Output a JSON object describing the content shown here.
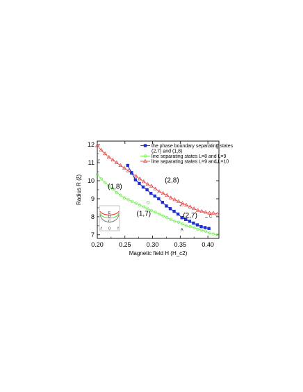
{
  "chart_data": {
    "type": "scatter",
    "xlabel": "Magnetic field H (H_c2)",
    "ylabel": "Radius R (ξ)",
    "xlim": [
      0.2,
      0.42
    ],
    "ylim": [
      6.8,
      12.2
    ],
    "x_ticks": [
      "0.20",
      "0.25",
      "0.30",
      "0.35",
      "0.40"
    ],
    "y_ticks": [
      "7",
      "8",
      "9",
      "10",
      "11",
      "12"
    ],
    "grid": false,
    "legend_position": "top-right",
    "series": [
      {
        "name": "the phase boundary separating states (2,7) and (1,8)",
        "color": "#1f2fd0",
        "marker": "filled-square",
        "x": [
          0.255,
          0.262,
          0.269,
          0.276,
          0.283,
          0.29,
          0.297,
          0.304,
          0.311,
          0.318,
          0.325,
          0.332,
          0.339,
          0.346,
          0.353,
          0.36,
          0.367,
          0.374,
          0.381,
          0.388,
          0.395,
          0.402
        ],
        "y": [
          10.85,
          10.45,
          10.05,
          9.85,
          9.65,
          9.5,
          9.3,
          9.15,
          9.0,
          8.8,
          8.6,
          8.45,
          8.3,
          8.15,
          7.95,
          7.85,
          7.75,
          7.65,
          7.55,
          7.45,
          7.4,
          7.35
        ]
      },
      {
        "name": "line  separating states L=8 and L=9",
        "color": "#66ee44",
        "marker": "open-circle",
        "x": [
          0.2,
          0.207,
          0.214,
          0.221,
          0.228,
          0.235,
          0.242,
          0.249,
          0.256,
          0.263,
          0.27,
          0.277,
          0.284,
          0.291,
          0.298,
          0.305,
          0.312,
          0.319,
          0.326,
          0.333,
          0.34,
          0.347,
          0.354,
          0.361,
          0.368,
          0.375,
          0.382,
          0.389,
          0.396,
          0.403,
          0.41,
          0.417
        ],
        "y": [
          10.35,
          10.1,
          9.9,
          9.7,
          9.55,
          9.35,
          9.2,
          9.05,
          8.95,
          8.85,
          8.75,
          8.65,
          8.55,
          8.45,
          8.35,
          8.25,
          8.15,
          8.05,
          7.95,
          7.85,
          7.75,
          7.7,
          7.6,
          7.5,
          7.45,
          7.4,
          7.3,
          7.25,
          7.2,
          7.1,
          7.05,
          7.0
        ]
      },
      {
        "name": "line  separating states L=9 and L=10",
        "color": "#e84040",
        "marker": "open-triangle",
        "x": [
          0.2,
          0.207,
          0.214,
          0.221,
          0.228,
          0.235,
          0.242,
          0.249,
          0.256,
          0.263,
          0.27,
          0.277,
          0.284,
          0.291,
          0.298,
          0.305,
          0.312,
          0.319,
          0.326,
          0.333,
          0.34,
          0.347,
          0.354,
          0.361,
          0.368,
          0.375,
          0.382,
          0.389,
          0.396,
          0.403,
          0.41,
          0.417
        ],
        "y": [
          11.95,
          11.7,
          11.5,
          11.3,
          11.15,
          11.0,
          10.85,
          10.7,
          10.55,
          10.4,
          10.25,
          10.1,
          9.95,
          9.8,
          9.7,
          9.55,
          9.4,
          9.3,
          9.2,
          9.05,
          8.95,
          8.85,
          8.75,
          8.65,
          8.55,
          8.45,
          8.35,
          8.3,
          8.25,
          8.2,
          8.2,
          8.15
        ]
      }
    ],
    "legend": [
      "the phase boundary separating states",
      "(2,7) and (1,8)",
      "line  separating states L=8 and L=9",
      "line  separating states L=9 and L=10"
    ],
    "annotations": {
      "regions": [
        {
          "text": "(2,8)",
          "x": 0.335,
          "y": 9.9
        },
        {
          "text": "(1,8)",
          "x": 0.232,
          "y": 9.55
        },
        {
          "text": "(1,7)",
          "x": 0.284,
          "y": 8.05
        },
        {
          "text": "(2,7)",
          "x": 0.368,
          "y": 7.95
        }
      ],
      "points": [
        {
          "text": "A",
          "x": 0.353,
          "y": 7.2,
          "color": "#222222"
        },
        {
          "text": "B",
          "x": 0.354,
          "y": 8.6,
          "color": "#e84040"
        },
        {
          "text": "C",
          "x": 0.405,
          "y": 7.95,
          "color": "#222222"
        },
        {
          "text": "D",
          "x": 0.292,
          "y": 8.7,
          "color": "#44bb33"
        },
        {
          "text": "E",
          "x": 0.203,
          "y": 11.0,
          "color": "#e84040"
        }
      ]
    },
    "inset": {
      "x_ticks": [
        "-f",
        "0",
        "f"
      ],
      "curves": [
        {
          "label": "E",
          "color": "#e84040"
        },
        {
          "label": "D",
          "color": "#66cc44"
        },
        {
          "label": "C",
          "color": "#888888"
        }
      ]
    }
  }
}
